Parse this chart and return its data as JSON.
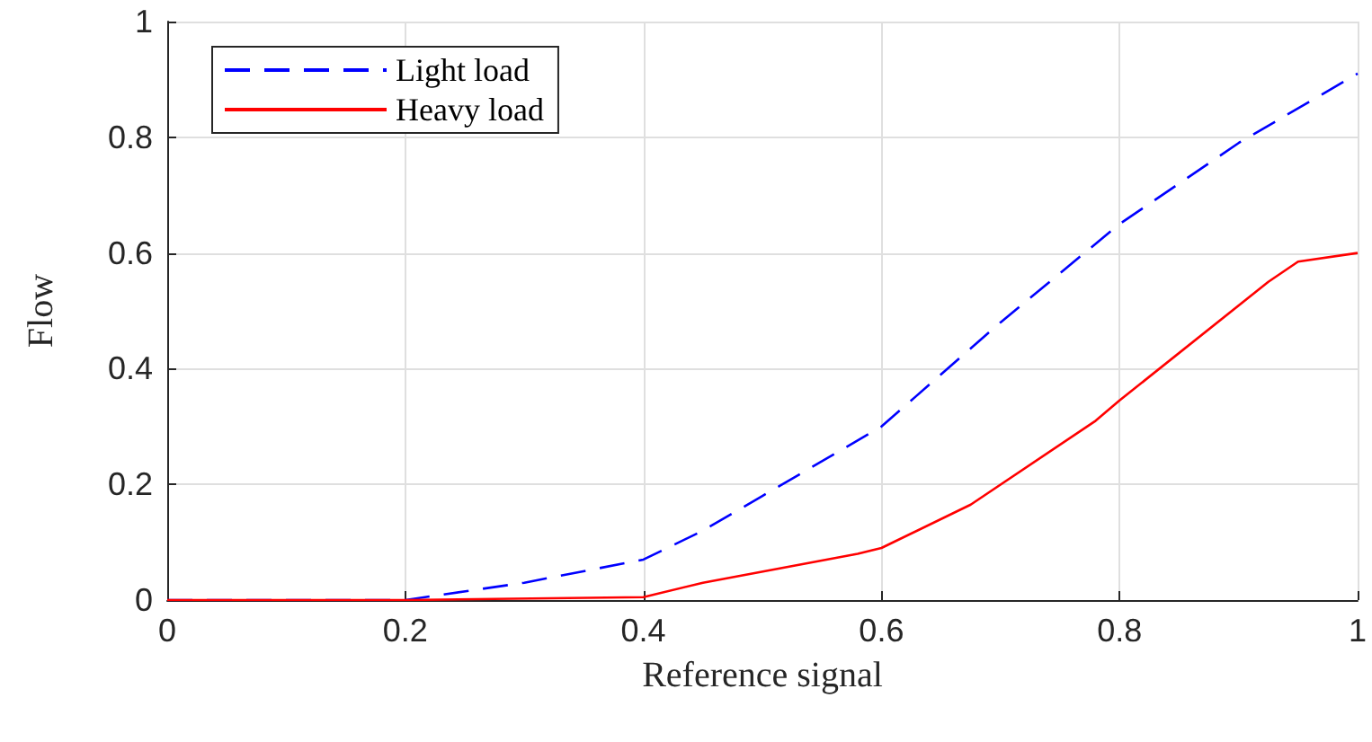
{
  "chart_data": {
    "type": "line",
    "xlabel": "Reference signal",
    "ylabel": "Flow",
    "xlim": [
      0,
      1
    ],
    "xticks": [
      0,
      0.2,
      0.4,
      0.6,
      0.8,
      1
    ],
    "ylim": [
      0,
      1
    ],
    "yticks": [
      0,
      0.2,
      0.4,
      0.6,
      0.8,
      1
    ],
    "grid": true,
    "legend": "top left",
    "marker": "none",
    "series": [
      {
        "name": "Light load",
        "color": "#0000ff",
        "line_style": "dashed",
        "x": [
          0,
          0.2,
          0.3,
          0.4,
          0.45,
          0.5,
          0.6,
          0.7,
          0.8,
          0.9,
          1
        ],
        "values": [
          0,
          0,
          0.03,
          0.07,
          0.12,
          0.18,
          0.3,
          0.48,
          0.65,
          0.79,
          0.91
        ]
      },
      {
        "name": "Heavy load",
        "color": "#ff0000",
        "line_style": "solid",
        "x": [
          0,
          0.2,
          0.4,
          0.45,
          0.58,
          0.6,
          0.675,
          0.78,
          0.8,
          0.925,
          0.95,
          1
        ],
        "values": [
          0,
          0,
          0.005,
          0.03,
          0.08,
          0.09,
          0.165,
          0.31,
          0.345,
          0.55,
          0.585,
          0.6
        ]
      }
    ]
  }
}
